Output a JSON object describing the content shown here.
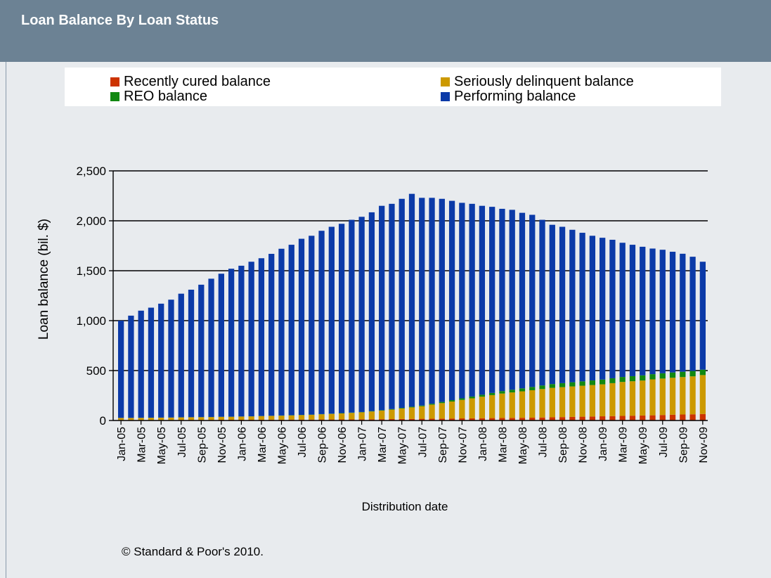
{
  "header": {
    "title": "Loan Balance By Loan Status"
  },
  "copyright": "© Standard & Poor's 2010.",
  "colors": {
    "recently_cured": "#cc3300",
    "seriously_delinquent": "#cc9900",
    "reo": "#118811",
    "performing": "#0b3aa8",
    "title_bar": "#6c8294",
    "panel": "#e8ebee"
  },
  "chart_data": {
    "type": "bar",
    "stacked": true,
    "title": "",
    "xlabel": "Distribution date",
    "ylabel": "Loan balance (bil. $)",
    "ylim": [
      0,
      2500
    ],
    "yticks": [
      "0",
      "500",
      "1,000",
      "1,500",
      "2,000",
      "2,500"
    ],
    "ytick_values": [
      0,
      500,
      1000,
      1500,
      2000,
      2500
    ],
    "grid": "horizontal",
    "legend_position": "top",
    "xtick_labels": [
      "Jan-05",
      "Mar-05",
      "May-05",
      "Jul-05",
      "Sep-05",
      "Nov-05",
      "Jan-06",
      "Mar-06",
      "May-06",
      "Jul-06",
      "Sep-06",
      "Nov-06",
      "Jan-07",
      "Mar-07",
      "May-07",
      "Jul-07",
      "Sep-07",
      "Nov-07",
      "Jan-08",
      "Mar-08",
      "May-08",
      "Jul-08",
      "Sep-08",
      "Nov-08",
      "Jan-09",
      "Mar-09",
      "May-09",
      "Jul-09",
      "Sep-09",
      "Nov-09"
    ],
    "categories": [
      "Jan-05",
      "Feb-05",
      "Mar-05",
      "Apr-05",
      "May-05",
      "Jun-05",
      "Jul-05",
      "Aug-05",
      "Sep-05",
      "Oct-05",
      "Nov-05",
      "Dec-05",
      "Jan-06",
      "Feb-06",
      "Mar-06",
      "Apr-06",
      "May-06",
      "Jun-06",
      "Jul-06",
      "Aug-06",
      "Sep-06",
      "Oct-06",
      "Nov-06",
      "Dec-06",
      "Jan-07",
      "Feb-07",
      "Mar-07",
      "Apr-07",
      "May-07",
      "Jun-07",
      "Jul-07",
      "Aug-07",
      "Sep-07",
      "Oct-07",
      "Nov-07",
      "Dec-07",
      "Jan-08",
      "Feb-08",
      "Mar-08",
      "Apr-08",
      "May-08",
      "Jun-08",
      "Jul-08",
      "Aug-08",
      "Sep-08",
      "Oct-08",
      "Nov-08",
      "Dec-08",
      "Jan-09",
      "Feb-09",
      "Mar-09",
      "Apr-09",
      "May-09",
      "Jun-09",
      "Jul-09",
      "Aug-09",
      "Sep-09",
      "Oct-09",
      "Nov-09"
    ],
    "series": [
      {
        "name": "Recently cured balance",
        "color": "#cc3300",
        "values": [
          5,
          5,
          5,
          5,
          5,
          5,
          6,
          6,
          6,
          6,
          7,
          7,
          7,
          7,
          8,
          8,
          8,
          9,
          9,
          9,
          10,
          10,
          11,
          11,
          12,
          12,
          13,
          14,
          15,
          16,
          17,
          18,
          19,
          20,
          21,
          22,
          23,
          24,
          25,
          26,
          27,
          28,
          30,
          32,
          34,
          36,
          38,
          40,
          42,
          44,
          46,
          48,
          50,
          52,
          55,
          58,
          60,
          62,
          65
        ]
      },
      {
        "name": "Seriously delinquent balance",
        "color": "#cc9900",
        "values": [
          20,
          20,
          21,
          22,
          23,
          24,
          25,
          26,
          27,
          28,
          29,
          30,
          32,
          34,
          36,
          38,
          40,
          42,
          45,
          48,
          52,
          56,
          60,
          65,
          70,
          78,
          86,
          95,
          105,
          115,
          125,
          140,
          155,
          170,
          185,
          200,
          215,
          230,
          245,
          255,
          265,
          275,
          285,
          295,
          300,
          305,
          310,
          315,
          320,
          330,
          340,
          345,
          350,
          360,
          365,
          370,
          375,
          380,
          390
        ]
      },
      {
        "name": "REO balance",
        "color": "#118811",
        "values": [
          1,
          1,
          1,
          1,
          1,
          1,
          1,
          1,
          1,
          1,
          1,
          1,
          1,
          1,
          1,
          1,
          2,
          2,
          2,
          2,
          2,
          2,
          3,
          3,
          3,
          4,
          4,
          5,
          6,
          7,
          8,
          10,
          12,
          14,
          16,
          18,
          20,
          22,
          24,
          27,
          30,
          33,
          36,
          38,
          40,
          42,
          44,
          46,
          48,
          49,
          50,
          51,
          52,
          52,
          53,
          53,
          53,
          54,
          54
        ]
      },
      {
        "name": "Performing balance",
        "color": "#0b3aa8",
        "values": [
          974,
          1024,
          1073,
          1102,
          1141,
          1180,
          1238,
          1277,
          1326,
          1385,
          1433,
          1482,
          1510,
          1548,
          1580,
          1622,
          1670,
          1707,
          1764,
          1791,
          1836,
          1872,
          1896,
          1931,
          1955,
          1991,
          2047,
          2056,
          2094,
          2132,
          2080,
          2062,
          2034,
          1996,
          1958,
          1930,
          1892,
          1864,
          1826,
          1802,
          1758,
          1724,
          1659,
          1595,
          1566,
          1527,
          1488,
          1449,
          1420,
          1387,
          1344,
          1316,
          1288,
          1258,
          1237,
          1209,
          1182,
          1144,
          1081
        ]
      }
    ]
  }
}
